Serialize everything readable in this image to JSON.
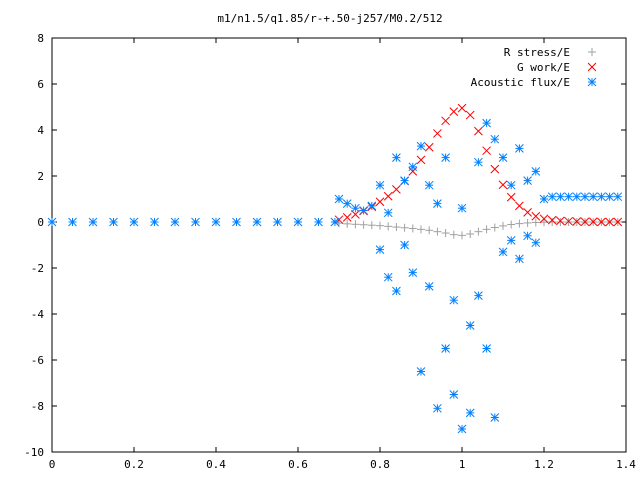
{
  "chart_data": {
    "type": "scatter",
    "title": "m1/n1.5/q1.85/r-+.50-j257/M0.2/512",
    "xlabel": "",
    "ylabel": "",
    "xlim": [
      0,
      1.4
    ],
    "ylim": [
      -10,
      8
    ],
    "x_ticks": [
      "0",
      "0.2",
      "0.4",
      "0.6",
      "0.8",
      "1",
      "1.2",
      "1.4"
    ],
    "y_ticks": [
      "8",
      "6",
      "4",
      "2",
      "0",
      "-2",
      "-4",
      "-6",
      "-8",
      "-10"
    ],
    "grid": false,
    "legend_position": "top-right",
    "series": [
      {
        "name": "R stress/E",
        "marker": "+",
        "color": "#a0a0a0",
        "points": [
          [
            0.7,
            -0.05
          ],
          [
            0.72,
            -0.08
          ],
          [
            0.74,
            -0.1
          ],
          [
            0.76,
            -0.12
          ],
          [
            0.78,
            -0.14
          ],
          [
            0.8,
            -0.16
          ],
          [
            0.82,
            -0.19
          ],
          [
            0.84,
            -0.22
          ],
          [
            0.86,
            -0.25
          ],
          [
            0.88,
            -0.28
          ],
          [
            0.9,
            -0.32
          ],
          [
            0.92,
            -0.36
          ],
          [
            0.94,
            -0.42
          ],
          [
            0.96,
            -0.48
          ],
          [
            0.98,
            -0.55
          ],
          [
            1.0,
            -0.58
          ],
          [
            1.02,
            -0.52
          ],
          [
            1.04,
            -0.42
          ],
          [
            1.06,
            -0.32
          ],
          [
            1.08,
            -0.24
          ],
          [
            1.1,
            -0.17
          ],
          [
            1.12,
            -0.11
          ],
          [
            1.14,
            -0.07
          ],
          [
            1.16,
            -0.04
          ],
          [
            1.18,
            -0.02
          ],
          [
            1.2,
            -0.01
          ],
          [
            1.22,
            0.0
          ],
          [
            1.24,
            0.0
          ],
          [
            1.26,
            0.0
          ],
          [
            1.28,
            0.0
          ],
          [
            1.3,
            0.0
          ],
          [
            1.32,
            0.0
          ],
          [
            1.34,
            0.0
          ],
          [
            1.36,
            0.0
          ],
          [
            1.38,
            0.0
          ]
        ]
      },
      {
        "name": "G work/E",
        "marker": "x",
        "color": "#ff0000",
        "points": [
          [
            0.7,
            0.1
          ],
          [
            0.72,
            0.2
          ],
          [
            0.74,
            0.33
          ],
          [
            0.76,
            0.48
          ],
          [
            0.78,
            0.66
          ],
          [
            0.8,
            0.88
          ],
          [
            0.82,
            1.12
          ],
          [
            0.84,
            1.42
          ],
          [
            0.86,
            1.78
          ],
          [
            0.88,
            2.2
          ],
          [
            0.9,
            2.7
          ],
          [
            0.92,
            3.25
          ],
          [
            0.94,
            3.85
          ],
          [
            0.96,
            4.4
          ],
          [
            0.98,
            4.8
          ],
          [
            1.0,
            4.95
          ],
          [
            1.02,
            4.65
          ],
          [
            1.04,
            3.95
          ],
          [
            1.06,
            3.1
          ],
          [
            1.08,
            2.3
          ],
          [
            1.1,
            1.62
          ],
          [
            1.12,
            1.08
          ],
          [
            1.14,
            0.7
          ],
          [
            1.16,
            0.42
          ],
          [
            1.18,
            0.25
          ],
          [
            1.2,
            0.14
          ],
          [
            1.22,
            0.08
          ],
          [
            1.24,
            0.05
          ],
          [
            1.26,
            0.03
          ],
          [
            1.28,
            0.02
          ],
          [
            1.3,
            0.01
          ],
          [
            1.32,
            0.01
          ],
          [
            1.34,
            0.0
          ],
          [
            1.36,
            0.0
          ],
          [
            1.38,
            0.0
          ]
        ]
      },
      {
        "name": "Acoustic flux/E",
        "marker": "*",
        "color": "#0080ff",
        "points": [
          [
            0.0,
            0.0
          ],
          [
            0.05,
            0.0
          ],
          [
            0.1,
            0.0
          ],
          [
            0.15,
            0.0
          ],
          [
            0.2,
            0.0
          ],
          [
            0.25,
            0.0
          ],
          [
            0.3,
            0.0
          ],
          [
            0.35,
            0.0
          ],
          [
            0.4,
            0.0
          ],
          [
            0.45,
            0.0
          ],
          [
            0.5,
            0.0
          ],
          [
            0.55,
            0.0
          ],
          [
            0.6,
            0.0
          ],
          [
            0.65,
            0.0
          ],
          [
            0.69,
            0.0
          ],
          [
            0.7,
            1.0
          ],
          [
            0.72,
            0.8
          ],
          [
            0.74,
            0.6
          ],
          [
            0.76,
            0.5
          ],
          [
            0.78,
            0.7
          ],
          [
            0.8,
            1.6
          ],
          [
            0.8,
            -1.2
          ],
          [
            0.82,
            0.4
          ],
          [
            0.82,
            -2.4
          ],
          [
            0.84,
            2.8
          ],
          [
            0.84,
            -3.0
          ],
          [
            0.86,
            1.8
          ],
          [
            0.86,
            -1.0
          ],
          [
            0.88,
            2.4
          ],
          [
            0.88,
            -2.2
          ],
          [
            0.9,
            3.3
          ],
          [
            0.9,
            -6.5
          ],
          [
            0.92,
            1.6
          ],
          [
            0.92,
            -2.8
          ],
          [
            0.94,
            -8.1
          ],
          [
            0.94,
            0.8
          ],
          [
            0.96,
            -5.5
          ],
          [
            0.96,
            2.8
          ],
          [
            0.98,
            -7.5
          ],
          [
            0.98,
            -3.4
          ],
          [
            1.0,
            -9.0
          ],
          [
            1.0,
            0.6
          ],
          [
            1.02,
            -8.3
          ],
          [
            1.02,
            -4.5
          ],
          [
            1.04,
            -3.2
          ],
          [
            1.04,
            2.6
          ],
          [
            1.06,
            4.3
          ],
          [
            1.06,
            -5.5
          ],
          [
            1.08,
            -8.5
          ],
          [
            1.08,
            3.6
          ],
          [
            1.1,
            -1.3
          ],
          [
            1.1,
            2.8
          ],
          [
            1.12,
            1.6
          ],
          [
            1.12,
            -0.8
          ],
          [
            1.14,
            3.2
          ],
          [
            1.14,
            -1.6
          ],
          [
            1.16,
            1.8
          ],
          [
            1.16,
            -0.6
          ],
          [
            1.18,
            2.2
          ],
          [
            1.18,
            -0.9
          ],
          [
            1.2,
            1.0
          ],
          [
            1.22,
            1.1
          ],
          [
            1.24,
            1.1
          ],
          [
            1.26,
            1.1
          ],
          [
            1.28,
            1.1
          ],
          [
            1.3,
            1.1
          ],
          [
            1.32,
            1.1
          ],
          [
            1.34,
            1.1
          ],
          [
            1.36,
            1.1
          ],
          [
            1.38,
            1.1
          ]
        ]
      }
    ]
  }
}
